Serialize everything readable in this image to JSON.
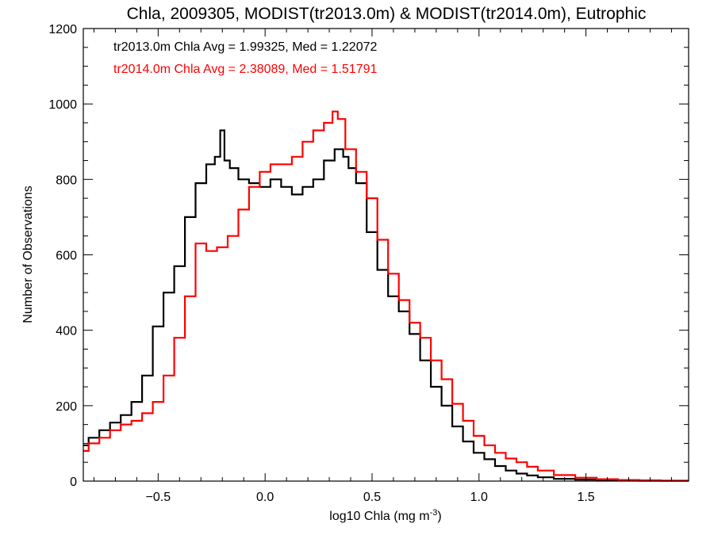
{
  "chart_data": {
    "type": "line",
    "title": "Chla, 2009305, MODIST(tr2013.0m) & MODIST(tr2014.0m), Eutrophic",
    "xlabel": "log10 Chla (mg m",
    "xlabel_sup": "-3",
    "xlabel_end": ")",
    "ylabel": "Number of Observations",
    "xlim": [
      -0.85,
      1.98
    ],
    "ylim": [
      0,
      1200
    ],
    "xticks": [
      -0.5,
      0.0,
      0.5,
      1.0,
      1.5
    ],
    "xtick_labels": [
      "−0.5",
      "0.0",
      "0.5",
      "1.0",
      "1.5"
    ],
    "yticks": [
      0,
      200,
      400,
      600,
      800,
      1000,
      1200
    ],
    "ytick_labels": [
      "0",
      "200",
      "400",
      "600",
      "800",
      "1000",
      "1200"
    ],
    "annotations": [
      {
        "text": "tr2013.0m Chla Avg = 1.99325, Med = 1.22072",
        "color": "#000000"
      },
      {
        "text": "tr2014.0m Chla Avg = 2.38089, Med = 1.51791",
        "color": "#ff0000"
      }
    ],
    "series": [
      {
        "color": "#000000",
        "x": [
          -0.85,
          -0.8,
          -0.75,
          -0.7,
          -0.65,
          -0.6,
          -0.55,
          -0.5,
          -0.45,
          -0.4,
          -0.35,
          -0.3,
          -0.25,
          -0.22,
          -0.2,
          -0.18,
          -0.15,
          -0.1,
          -0.05,
          0.0,
          0.05,
          0.1,
          0.15,
          0.2,
          0.25,
          0.3,
          0.35,
          0.38,
          0.4,
          0.45,
          0.5,
          0.55,
          0.6,
          0.65,
          0.7,
          0.75,
          0.8,
          0.85,
          0.9,
          0.95,
          1.0,
          1.05,
          1.1,
          1.15,
          1.2,
          1.25,
          1.3,
          1.4,
          1.5,
          1.6,
          1.7,
          1.8,
          1.9,
          1.98
        ],
        "y": [
          95,
          115,
          135,
          155,
          175,
          210,
          280,
          410,
          500,
          570,
          700,
          790,
          840,
          860,
          930,
          850,
          830,
          800,
          790,
          780,
          800,
          780,
          760,
          780,
          800,
          850,
          880,
          860,
          830,
          790,
          660,
          560,
          490,
          450,
          390,
          320,
          250,
          200,
          145,
          105,
          75,
          58,
          40,
          28,
          20,
          15,
          10,
          6,
          4,
          3,
          2,
          1,
          1,
          1
        ]
      },
      {
        "color": "#ff0000",
        "x": [
          -0.85,
          -0.8,
          -0.75,
          -0.7,
          -0.65,
          -0.6,
          -0.55,
          -0.5,
          -0.45,
          -0.4,
          -0.35,
          -0.3,
          -0.25,
          -0.2,
          -0.15,
          -0.1,
          -0.05,
          0.0,
          0.05,
          0.1,
          0.15,
          0.2,
          0.25,
          0.3,
          0.33,
          0.35,
          0.4,
          0.45,
          0.5,
          0.55,
          0.6,
          0.65,
          0.7,
          0.75,
          0.8,
          0.85,
          0.9,
          0.95,
          1.0,
          1.05,
          1.1,
          1.15,
          1.2,
          1.25,
          1.3,
          1.4,
          1.5,
          1.6,
          1.7,
          1.8,
          1.9,
          1.98
        ],
        "y": [
          80,
          100,
          115,
          135,
          150,
          160,
          180,
          210,
          280,
          380,
          490,
          630,
          610,
          620,
          650,
          720,
          780,
          820,
          840,
          840,
          860,
          900,
          930,
          950,
          980,
          960,
          880,
          820,
          750,
          640,
          550,
          480,
          420,
          380,
          320,
          270,
          205,
          160,
          120,
          95,
          75,
          60,
          50,
          38,
          28,
          16,
          9,
          5,
          3,
          2,
          1,
          1
        ]
      }
    ]
  }
}
